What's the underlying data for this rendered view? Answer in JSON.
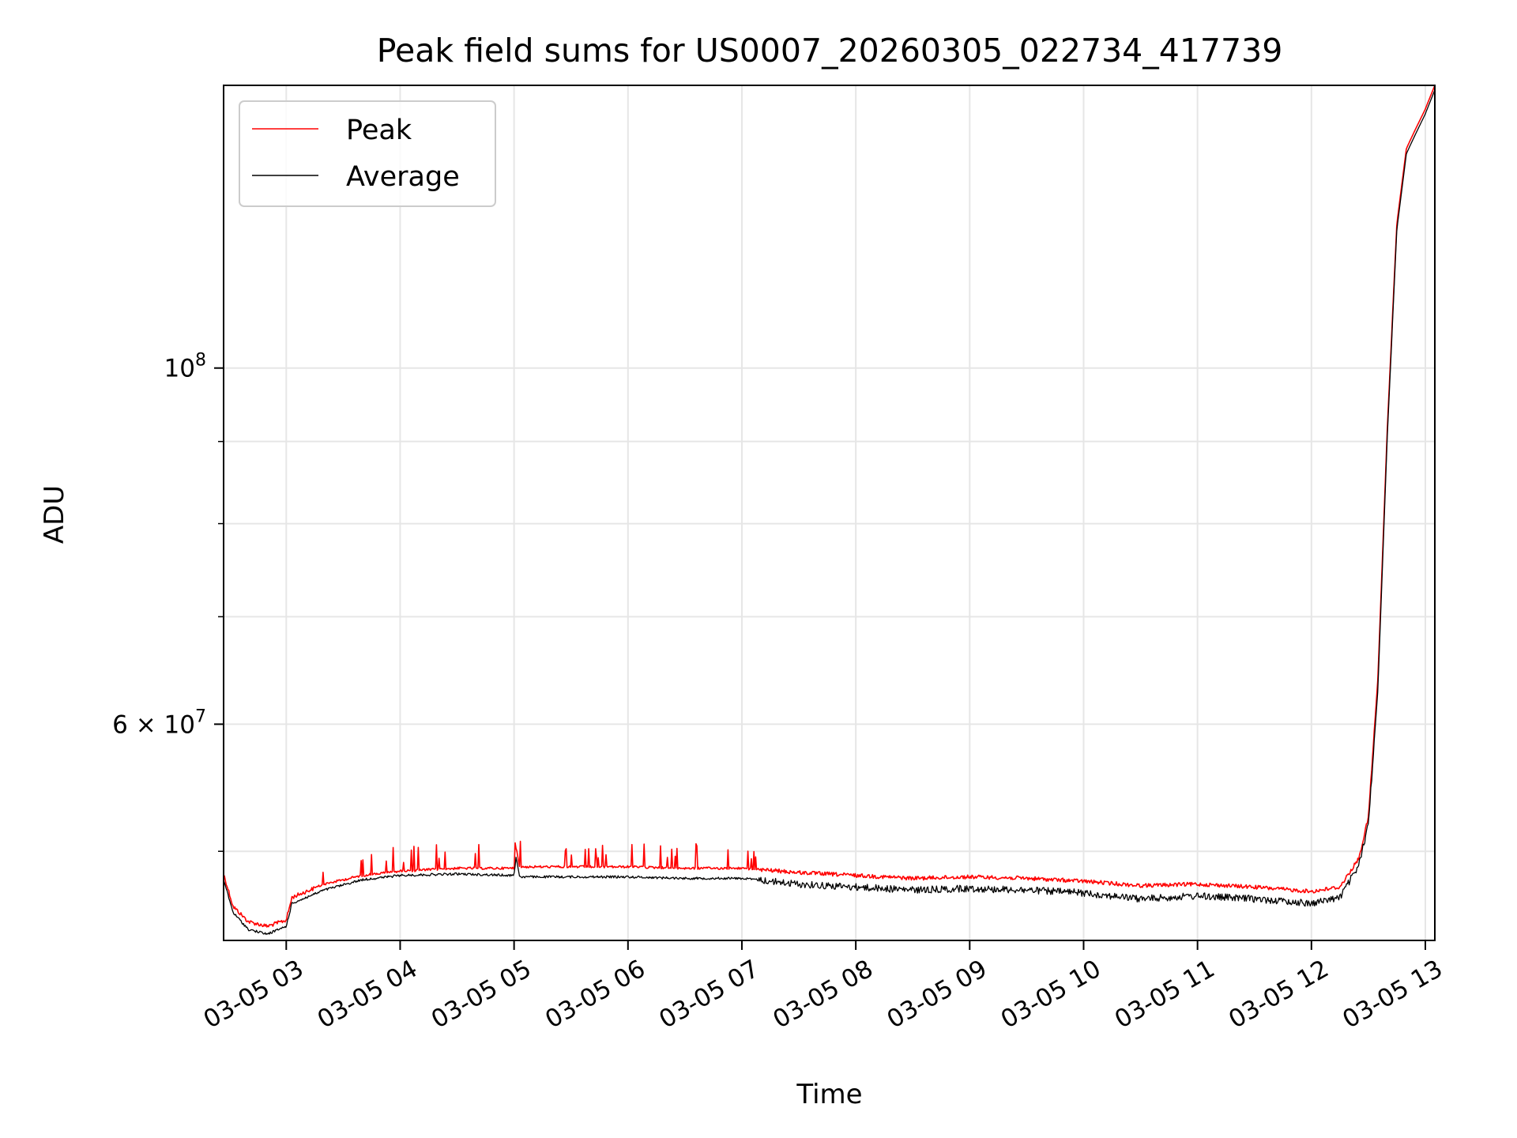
{
  "chart_data": {
    "type": "line",
    "title": "Peak field sums for US0007_20260305_022734_417739",
    "xlabel": "Time",
    "ylabel": "ADU",
    "x_range": [
      "2026-03-05 02:27",
      "2026-03-05 13:05"
    ],
    "y_range": [
      44000000,
      150000000
    ],
    "y_scale": "log",
    "grid": true,
    "legend_placement": "top-left",
    "x_ticks": [
      {
        "value": "2026-03-05 03:00",
        "label": "03-05 03"
      },
      {
        "value": "2026-03-05 04:00",
        "label": "03-05 04"
      },
      {
        "value": "2026-03-05 05:00",
        "label": "03-05 05"
      },
      {
        "value": "2026-03-05 06:00",
        "label": "03-05 06"
      },
      {
        "value": "2026-03-05 07:00",
        "label": "03-05 07"
      },
      {
        "value": "2026-03-05 08:00",
        "label": "03-05 08"
      },
      {
        "value": "2026-03-05 09:00",
        "label": "03-05 09"
      },
      {
        "value": "2026-03-05 10:00",
        "label": "03-05 10"
      },
      {
        "value": "2026-03-05 11:00",
        "label": "03-05 11"
      },
      {
        "value": "2026-03-05 12:00",
        "label": "03-05 12"
      },
      {
        "value": "2026-03-05 13:00",
        "label": "03-05 13"
      }
    ],
    "y_major_ticks": [
      {
        "value": 60000000,
        "label_mantissa": "6 × 10",
        "label_exp": "7"
      },
      {
        "value": 100000000,
        "label_mantissa": "10",
        "label_exp": "8"
      }
    ],
    "y_minor_ticks": [
      50000000,
      70000000,
      80000000,
      90000000
    ],
    "series": [
      {
        "name": "Peak",
        "color": "#ff0000",
        "points": [
          [
            "2026-03-05 02:27",
            48400000
          ],
          [
            "2026-03-05 02:32",
            46200000
          ],
          [
            "2026-03-05 02:40",
            45200000
          ],
          [
            "2026-03-05 02:50",
            44900000
          ],
          [
            "2026-03-05 03:00",
            45300000
          ],
          [
            "2026-03-05 03:03",
            46800000
          ],
          [
            "2026-03-05 03:20",
            47700000
          ],
          [
            "2026-03-05 03:40",
            48300000
          ],
          [
            "2026-03-05 04:00",
            48600000
          ],
          [
            "2026-03-05 04:30",
            48800000
          ],
          [
            "2026-03-05 05:00",
            48800000
          ],
          [
            "2026-03-05 05:01",
            50300000
          ],
          [
            "2026-03-05 05:03",
            48900000
          ],
          [
            "2026-03-05 05:30",
            48900000
          ],
          [
            "2026-03-05 06:00",
            48900000
          ],
          [
            "2026-03-05 06:30",
            48800000
          ],
          [
            "2026-03-05 07:00",
            48800000
          ],
          [
            "2026-03-05 07:30",
            48500000
          ],
          [
            "2026-03-05 08:00",
            48300000
          ],
          [
            "2026-03-05 08:30",
            48100000
          ],
          [
            "2026-03-05 09:00",
            48200000
          ],
          [
            "2026-03-05 09:30",
            48100000
          ],
          [
            "2026-03-05 10:00",
            47900000
          ],
          [
            "2026-03-05 10:30",
            47600000
          ],
          [
            "2026-03-05 11:00",
            47700000
          ],
          [
            "2026-03-05 11:30",
            47500000
          ],
          [
            "2026-03-05 12:00",
            47200000
          ],
          [
            "2026-03-05 12:15",
            47500000
          ],
          [
            "2026-03-05 12:25",
            49500000
          ],
          [
            "2026-03-05 12:30",
            52500000
          ],
          [
            "2026-03-05 12:35",
            64000000
          ],
          [
            "2026-03-05 12:40",
            92000000
          ],
          [
            "2026-03-05 12:45",
            123000000
          ],
          [
            "2026-03-05 12:50",
            137000000
          ],
          [
            "2026-03-05 12:55",
            141000000
          ],
          [
            "2026-03-05 13:00",
            145000000
          ],
          [
            "2026-03-05 13:05",
            150000000
          ]
        ]
      },
      {
        "name": "Average",
        "color": "#000000",
        "points": [
          [
            "2026-03-05 02:27",
            48000000
          ],
          [
            "2026-03-05 02:32",
            45800000
          ],
          [
            "2026-03-05 02:40",
            44700000
          ],
          [
            "2026-03-05 02:50",
            44400000
          ],
          [
            "2026-03-05 03:00",
            44900000
          ],
          [
            "2026-03-05 03:03",
            46400000
          ],
          [
            "2026-03-05 03:20",
            47300000
          ],
          [
            "2026-03-05 03:40",
            48000000
          ],
          [
            "2026-03-05 04:00",
            48300000
          ],
          [
            "2026-03-05 04:30",
            48400000
          ],
          [
            "2026-03-05 05:00",
            48300000
          ],
          [
            "2026-03-05 05:01",
            49600000
          ],
          [
            "2026-03-05 05:03",
            48200000
          ],
          [
            "2026-03-05 05:30",
            48200000
          ],
          [
            "2026-03-05 06:00",
            48200000
          ],
          [
            "2026-03-05 06:30",
            48100000
          ],
          [
            "2026-03-05 07:00",
            48100000
          ],
          [
            "2026-03-05 07:30",
            47700000
          ],
          [
            "2026-03-05 08:00",
            47500000
          ],
          [
            "2026-03-05 08:30",
            47300000
          ],
          [
            "2026-03-05 09:00",
            47400000
          ],
          [
            "2026-03-05 09:30",
            47300000
          ],
          [
            "2026-03-05 10:00",
            47100000
          ],
          [
            "2026-03-05 10:30",
            46700000
          ],
          [
            "2026-03-05 11:00",
            46900000
          ],
          [
            "2026-03-05 11:30",
            46700000
          ],
          [
            "2026-03-05 12:00",
            46400000
          ],
          [
            "2026-03-05 12:15",
            46800000
          ],
          [
            "2026-03-05 12:25",
            49000000
          ],
          [
            "2026-03-05 12:30",
            52000000
          ],
          [
            "2026-03-05 12:35",
            63000000
          ],
          [
            "2026-03-05 12:40",
            91000000
          ],
          [
            "2026-03-05 12:45",
            122000000
          ],
          [
            "2026-03-05 12:50",
            136000000
          ],
          [
            "2026-03-05 12:55",
            140000000
          ],
          [
            "2026-03-05 13:00",
            144000000
          ],
          [
            "2026-03-05 13:05",
            149000000
          ]
        ]
      }
    ]
  }
}
